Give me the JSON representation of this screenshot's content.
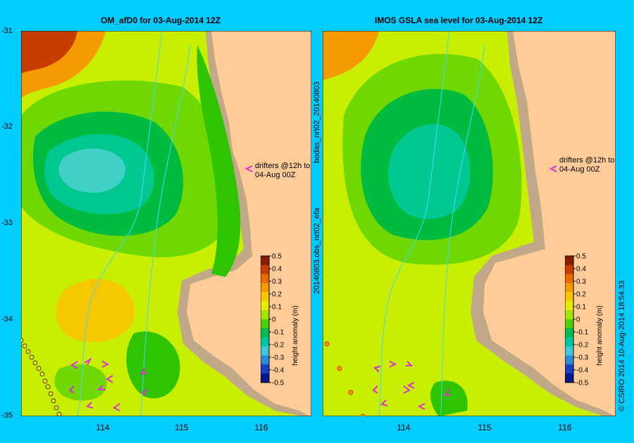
{
  "left_panel": {
    "title": "OM_afD0 for 03-Aug-2014 12Z",
    "annotation_line1": "drifters @12h to",
    "annotation_line2": "04-Aug 00Z",
    "colorbar_label": "height anomaly (m)"
  },
  "right_panel": {
    "title": "IMOS GSLA sea level  for 03-Aug-2014 12Z",
    "annotation_line1": "drifters @12h to",
    "annotation_line2": "04-Aug 00Z",
    "colorbar_label": "height anomaly (m)"
  },
  "side_labels": {
    "left_vertical": "20140803.obs_nrt02_efa",
    "left_vertical2": "bodas_nrt02_20140803",
    "right_vertical": "© CSIRO 2014   10-Aug-2014 18:54:33"
  },
  "axes": {
    "lat_labels": [
      "-31",
      "-32",
      "-33",
      "-34",
      "-35"
    ],
    "lon_labels": [
      "114",
      "115",
      "116"
    ]
  },
  "colorbar": {
    "ticks": [
      "0.5",
      "0.4",
      "0.3",
      "0.2",
      "0.1",
      "0",
      "-0.1",
      "-0.2",
      "-0.3",
      "-0.4",
      "-0.5"
    ],
    "colors": [
      "#8b1a00",
      "#c83c00",
      "#e86c00",
      "#f59a00",
      "#f5c800",
      "#e5ee00",
      "#a8e200",
      "#4fd000",
      "#00be50",
      "#00c8a0",
      "#40c8d8",
      "#2a8ad8",
      "#1840c0",
      "#0a1890"
    ]
  },
  "colors": {
    "land": "#ffcc99",
    "coast": "#c0a888",
    "background": "#00ccff",
    "drifter_arrow": "#e030d0"
  }
}
